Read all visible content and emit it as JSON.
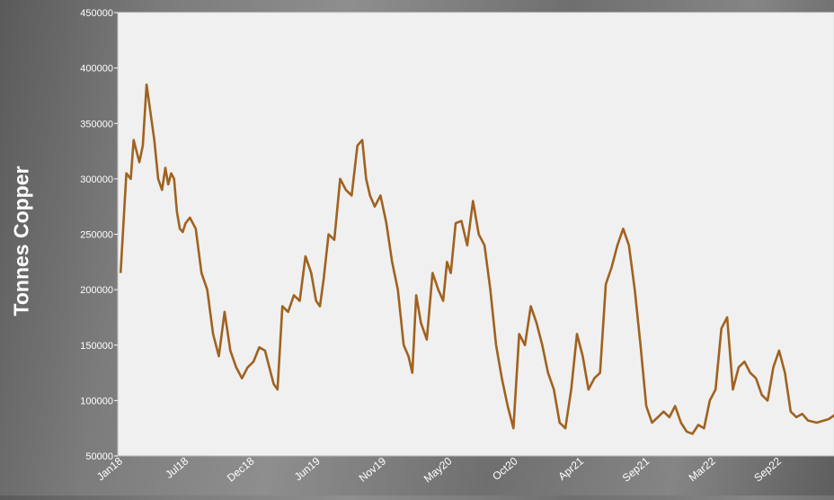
{
  "chart_data": {
    "type": "line",
    "title": "",
    "xlabel": "",
    "ylabel": "Tonnes Copper",
    "ylim": [
      50000,
      450000
    ],
    "y_ticks": [
      50000,
      100000,
      150000,
      200000,
      250000,
      300000,
      350000,
      400000,
      450000
    ],
    "y_tick_labels": [
      "50000",
      "100000",
      "150000",
      "200000",
      "250000",
      "300000",
      "350000",
      "400000",
      "450000"
    ],
    "x_tick_labels": [
      "Jan18",
      "Jul18",
      "Dec18",
      "Jun19",
      "Nov19",
      "May20",
      "Oct20",
      "Apr21",
      "Sep21",
      "Mar22",
      "Sep22"
    ],
    "x_range": [
      "2018-01",
      "2023-03"
    ],
    "grid": false,
    "legend": "none",
    "colors": {
      "line": "#a0621f",
      "plot_bg": "#f0f0f0",
      "axis_text": "#ffffff"
    },
    "series": [
      {
        "name": "",
        "x": [
          "2018-01",
          "2018-01",
          "2018-02",
          "2018-02",
          "2018-02",
          "2018-02",
          "2018-03",
          "2018-03",
          "2018-03",
          "2018-04",
          "2018-04",
          "2018-04",
          "2018-05",
          "2018-05",
          "2018-05",
          "2018-05",
          "2018-06",
          "2018-06",
          "2018-06",
          "2018-06",
          "2018-07",
          "2018-07",
          "2018-08",
          "2018-08",
          "2018-09",
          "2018-09",
          "2018-10",
          "2018-10",
          "2018-11",
          "2018-11",
          "2018-12",
          "2018-12",
          "2019-01",
          "2019-01",
          "2019-02",
          "2019-02",
          "2019-02",
          "2019-03",
          "2019-03",
          "2019-04",
          "2019-04",
          "2019-05",
          "2019-05",
          "2019-06",
          "2019-06",
          "2019-06",
          "2019-07",
          "2019-07",
          "2019-08",
          "2019-08",
          "2019-09",
          "2019-09",
          "2019-10",
          "2019-10",
          "2019-10",
          "2019-11",
          "2019-11",
          "2019-12",
          "2019-12",
          "2020-01",
          "2020-01",
          "2020-02",
          "2020-02",
          "2020-02",
          "2020-03",
          "2020-03",
          "2020-04",
          "2020-04",
          "2020-05",
          "2020-05",
          "2020-05",
          "2020-06",
          "2020-06",
          "2020-07",
          "2020-07",
          "2020-08",
          "2020-08",
          "2020-09",
          "2020-09",
          "2020-10",
          "2020-10",
          "2020-11",
          "2020-11",
          "2020-12",
          "2020-12",
          "2021-01",
          "2021-01",
          "2021-02",
          "2021-02",
          "2021-03",
          "2021-03",
          "2021-04",
          "2021-04",
          "2021-05",
          "2021-05",
          "2021-06",
          "2021-06",
          "2021-07",
          "2021-07",
          "2021-08",
          "2021-08",
          "2021-09",
          "2021-09",
          "2021-10",
          "2021-10",
          "2021-11",
          "2021-11",
          "2021-12",
          "2021-12",
          "2022-01",
          "2022-01",
          "2022-02",
          "2022-02",
          "2022-03",
          "2022-03",
          "2022-04",
          "2022-04",
          "2022-05",
          "2022-05",
          "2022-06",
          "2022-06",
          "2022-07",
          "2022-07",
          "2022-08",
          "2022-08",
          "2022-09",
          "2022-09",
          "2022-10",
          "2022-10",
          "2022-11",
          "2022-11",
          "2022-12",
          "2022-12",
          "2023-01",
          "2023-02",
          "2023-03"
        ],
        "values": [
          215000,
          305000,
          300000,
          335000,
          325000,
          315000,
          330000,
          385000,
          360000,
          335000,
          300000,
          290000,
          310000,
          295000,
          305000,
          300000,
          270000,
          255000,
          252000,
          260000,
          265000,
          255000,
          215000,
          200000,
          160000,
          140000,
          180000,
          145000,
          130000,
          120000,
          130000,
          135000,
          148000,
          145000,
          128000,
          115000,
          110000,
          185000,
          180000,
          195000,
          190000,
          230000,
          215000,
          190000,
          185000,
          210000,
          250000,
          245000,
          300000,
          290000,
          285000,
          330000,
          335000,
          300000,
          285000,
          275000,
          285000,
          260000,
          225000,
          200000,
          150000,
          140000,
          125000,
          195000,
          170000,
          155000,
          215000,
          200000,
          190000,
          225000,
          215000,
          260000,
          262000,
          240000,
          280000,
          250000,
          240000,
          200000,
          150000,
          120000,
          95000,
          75000,
          160000,
          150000,
          185000,
          170000,
          150000,
          125000,
          110000,
          80000,
          75000,
          110000,
          160000,
          140000,
          110000,
          120000,
          125000,
          205000,
          220000,
          240000,
          255000,
          240000,
          200000,
          150000,
          95000,
          80000,
          85000,
          90000,
          85000,
          95000,
          80000,
          72000,
          70000,
          78000,
          75000,
          100000,
          110000,
          165000,
          175000,
          110000,
          130000,
          135000,
          125000,
          120000,
          105000,
          100000,
          130000,
          145000,
          125000,
          90000,
          85000,
          88000,
          82000,
          80000,
          83000,
          90000
        ]
      }
    ]
  }
}
